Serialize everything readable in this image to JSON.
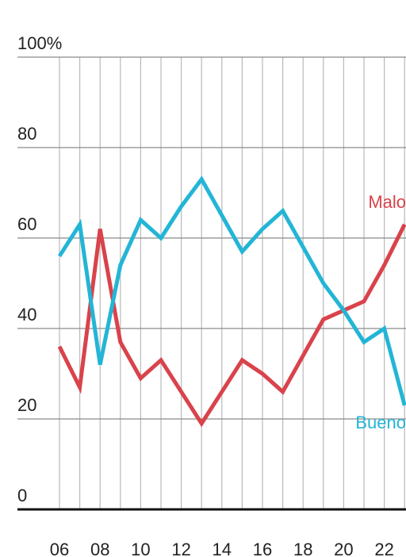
{
  "chart_data": {
    "type": "line",
    "x": [
      "06",
      "07",
      "08",
      "09",
      "10",
      "11",
      "12",
      "13",
      "14",
      "15",
      "16",
      "17",
      "18",
      "19",
      "20",
      "21",
      "22",
      "23"
    ],
    "x_tick_labels": [
      "06",
      "08",
      "10",
      "12",
      "14",
      "16",
      "18",
      "20",
      "22"
    ],
    "y_tick_labels": [
      "0",
      "20",
      "40",
      "60",
      "80",
      "100%"
    ],
    "y_ticks": [
      0,
      20,
      40,
      60,
      80,
      100
    ],
    "ylim": [
      0,
      100
    ],
    "grid": true,
    "series": [
      {
        "name": "Malo",
        "color": "#d9434b",
        "values": [
          36,
          27,
          62,
          37,
          29,
          33,
          26,
          19,
          26,
          33,
          30,
          26,
          34,
          42,
          44,
          46,
          54,
          63
        ]
      },
      {
        "name": "Bueno",
        "color": "#23b5d6",
        "values": [
          56,
          63,
          32,
          54,
          64,
          60,
          67,
          73,
          65,
          57,
          62,
          66,
          58,
          50,
          44,
          37,
          40,
          23
        ]
      }
    ]
  }
}
